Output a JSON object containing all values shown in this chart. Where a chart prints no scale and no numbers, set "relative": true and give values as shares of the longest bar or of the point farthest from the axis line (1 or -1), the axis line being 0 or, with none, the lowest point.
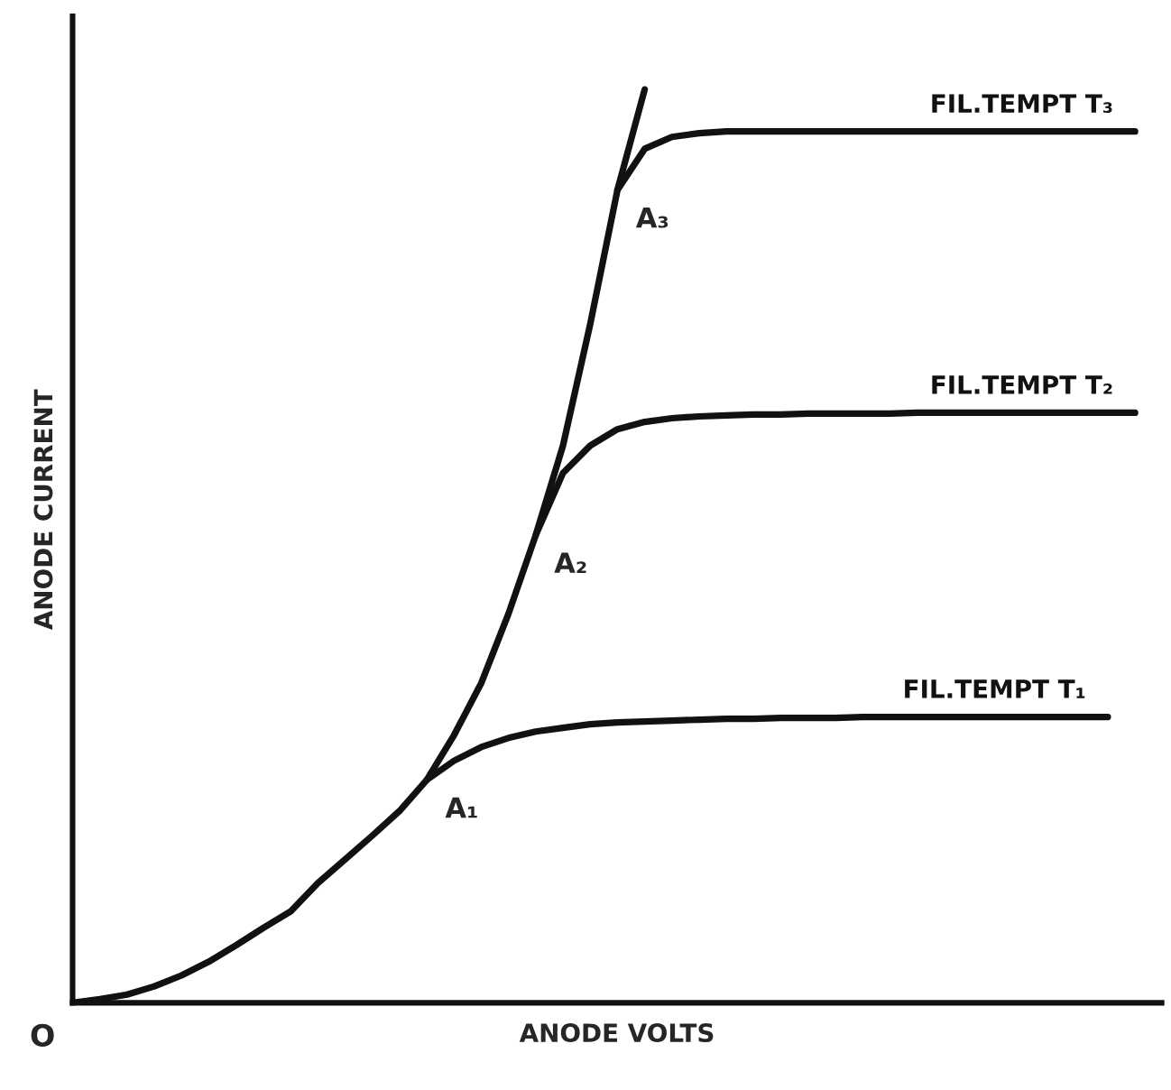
{
  "chart_data": {
    "type": "line",
    "relative": true,
    "xlabel": "ANODE VOLTS",
    "ylabel": "ANODE CURRENT",
    "tick_labels": false,
    "legend": false,
    "marker": "none",
    "line_style": "solid",
    "categories": [
      null,
      null,
      null,
      null,
      null,
      null,
      null,
      null,
      null,
      null,
      null,
      null,
      null,
      null,
      null,
      null,
      null,
      null,
      null,
      null,
      null,
      null,
      null,
      null,
      null,
      null,
      null,
      null,
      null,
      null,
      null,
      null,
      null,
      null,
      null,
      null,
      null,
      null,
      null,
      null
    ],
    "series": [
      {
        "color": "#111111",
        "values": [
          0,
          0.004,
          0.009,
          0.018,
          0.03,
          0.045,
          0.063,
          0.082,
          0.1,
          0.131,
          0.157,
          0.183,
          0.21,
          0.244,
          0.293,
          0.35,
          0.426,
          0.512,
          0.61,
          0.743,
          0.89,
          1.0,
          null,
          null,
          null,
          null,
          null,
          null,
          null,
          null,
          null,
          null,
          null,
          null,
          null,
          null,
          null,
          null,
          null,
          null
        ]
      },
      {
        "name": "FIL.TEMPT T₁",
        "color": "#111111",
        "values": [
          null,
          null,
          null,
          null,
          null,
          null,
          null,
          null,
          null,
          null,
          null,
          null,
          null,
          0.244,
          0.265,
          0.28,
          0.29,
          0.297,
          0.301,
          0.305,
          0.307,
          0.308,
          0.309,
          0.31,
          0.311,
          0.311,
          0.312,
          0.312,
          0.312,
          0.313,
          0.313,
          0.313,
          0.313,
          0.313,
          0.313,
          0.313,
          0.313,
          0.313,
          0.313,
          null
        ]
      },
      {
        "name": "FIL.TEMPT T₂",
        "color": "#111111",
        "values": [
          null,
          null,
          null,
          null,
          null,
          null,
          null,
          null,
          null,
          null,
          null,
          null,
          null,
          null,
          null,
          null,
          null,
          0.512,
          0.58,
          0.61,
          0.628,
          0.636,
          0.64,
          0.642,
          0.643,
          0.644,
          0.644,
          0.645,
          0.645,
          0.645,
          0.645,
          0.646,
          0.646,
          0.646,
          0.646,
          0.646,
          0.646,
          0.646,
          0.646,
          0.646
        ]
      },
      {
        "name": "FIL.TEMPT T₃",
        "color": "#111111",
        "values": [
          null,
          null,
          null,
          null,
          null,
          null,
          null,
          null,
          null,
          null,
          null,
          null,
          null,
          null,
          null,
          null,
          null,
          null,
          null,
          null,
          0.89,
          0.935,
          0.948,
          0.952,
          0.954,
          0.954,
          0.954,
          0.954,
          0.954,
          0.954,
          0.954,
          0.954,
          0.954,
          0.954,
          0.954,
          0.954,
          0.954,
          0.954,
          0.954,
          0.954
        ]
      }
    ],
    "annotations": [
      "A₁",
      "A₂",
      "A₃",
      "O"
    ]
  }
}
